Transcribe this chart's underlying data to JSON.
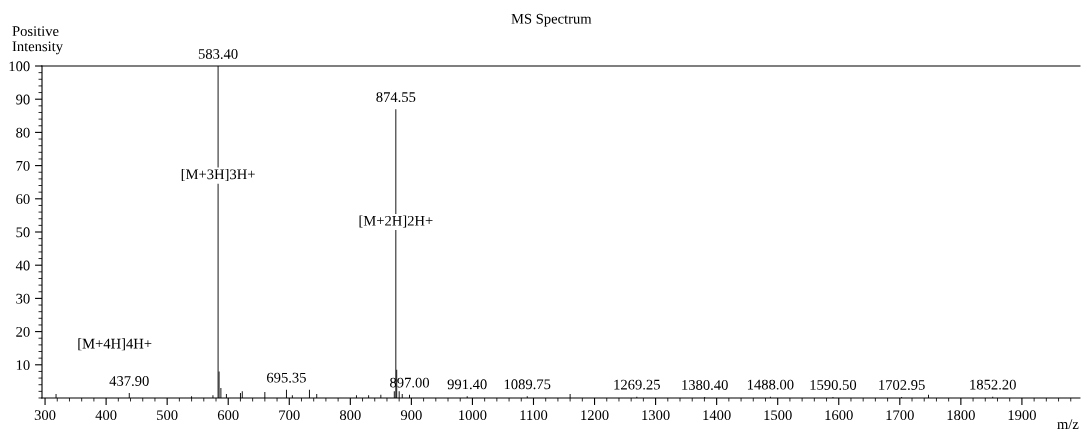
{
  "chart_data": {
    "type": "bar",
    "title": "MS Spectrum",
    "ylabel": "Positive\nIntensity",
    "xlabel": "m/z",
    "color": "#000000",
    "x": [
      318,
      437.9,
      540,
      575,
      580,
      583.4,
      585,
      588,
      597,
      620,
      623,
      660,
      695.35,
      705,
      733,
      745,
      810,
      830,
      850,
      865,
      872,
      874.55,
      876,
      880,
      885,
      897,
      991.4,
      1089.75,
      1160,
      1269.25,
      1380.4,
      1488,
      1590.5,
      1702.95,
      1747,
      1852.2
    ],
    "values": [
      1.2,
      1.5,
      0.5,
      0.8,
      null,
      100,
      8,
      3,
      1.2,
      1.5,
      2,
      1.8,
      2.5,
      0.8,
      2.5,
      1.2,
      0.8,
      0.8,
      1,
      null,
      2,
      87,
      8.5,
      2,
      1.2,
      1,
      0.5,
      0.5,
      1.2,
      0.4,
      0.3,
      0.4,
      0.3,
      0.3,
      1,
      0.4
    ],
    "annotations": [
      {
        "text": "583.40",
        "x": 583.4,
        "y": 100
      },
      {
        "text": "874.55",
        "x": 874.55,
        "y": 87
      },
      {
        "text": "437.90",
        "x": 437.9,
        "y": 1.5
      },
      {
        "text": "695.35",
        "x": 695.35,
        "y": 2.5
      },
      {
        "text": "897.00",
        "x": 897,
        "y": 1
      },
      {
        "text": "991.40",
        "x": 991.4,
        "y": 0.5
      },
      {
        "text": "1089.75",
        "x": 1089.75,
        "y": 0.5
      },
      {
        "text": "1269.25",
        "x": 1269.25,
        "y": 0.4
      },
      {
        "text": "1380.40",
        "x": 1380.4,
        "y": 0.3
      },
      {
        "text": "1488.00",
        "x": 1488,
        "y": 0.4
      },
      {
        "text": "1590.50",
        "x": 1590.5,
        "y": 0.3
      },
      {
        "text": "1702.95",
        "x": 1702.95,
        "y": 0.3
      },
      {
        "text": "1852.20",
        "x": 1852.2,
        "y": 0.4
      },
      {
        "text": "[M+3H]3H+",
        "x": 583.4,
        "y": 67
      },
      {
        "text": "[M+2H]2H+",
        "x": 874.55,
        "y": 53
      },
      "[M+4H]4H+"
    ],
    "xlim": [
      295,
      1995
    ],
    "xticks": [
      300,
      400,
      500,
      600,
      700,
      800,
      900,
      1000,
      1100,
      1200,
      1300,
      1400,
      1500,
      1600,
      1700,
      1800,
      1900
    ],
    "ylim": [
      0,
      100
    ],
    "yticks": [
      10,
      20,
      30,
      40,
      50,
      60,
      70,
      80,
      90,
      100
    ],
    "grid": false,
    "legend": false
  }
}
